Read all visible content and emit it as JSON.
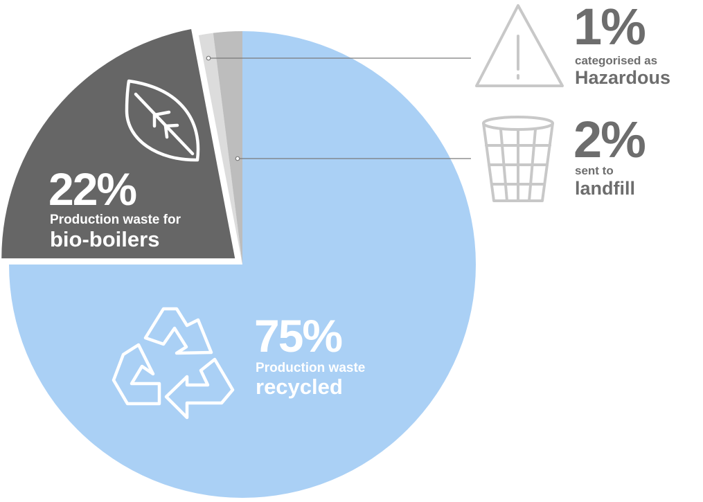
{
  "chart_data": {
    "type": "pie",
    "slices": [
      {
        "key": "recycled",
        "value": 75,
        "percent_label": "75%",
        "line1": "Production waste",
        "line2": "recycled",
        "color": "#aad0f5",
        "icon": "recycle-icon"
      },
      {
        "key": "bio",
        "value": 22,
        "percent_label": "22%",
        "line1": "Production waste for",
        "line2": "bio-boilers",
        "color": "#666666",
        "icon": "leaf-icon"
      },
      {
        "key": "hazardous",
        "value": 1,
        "percent_label": "1%",
        "line1": "categorised as",
        "line2": "Hazardous",
        "color": "#dcdcdc",
        "icon": "warning-triangle-icon"
      },
      {
        "key": "landfill",
        "value": 2,
        "percent_label": "2%",
        "line1": "sent to",
        "line2": "landfill",
        "color": "#bdbdbd",
        "icon": "waste-bin-icon"
      }
    ],
    "start": "top (12 o'clock), clockwise from recycled",
    "highlight": "22% slice pulled outward",
    "label_color": "#6d6d6d",
    "leader_color": "#7a7a7a",
    "icon_outline_color": "#c8c8c8"
  }
}
